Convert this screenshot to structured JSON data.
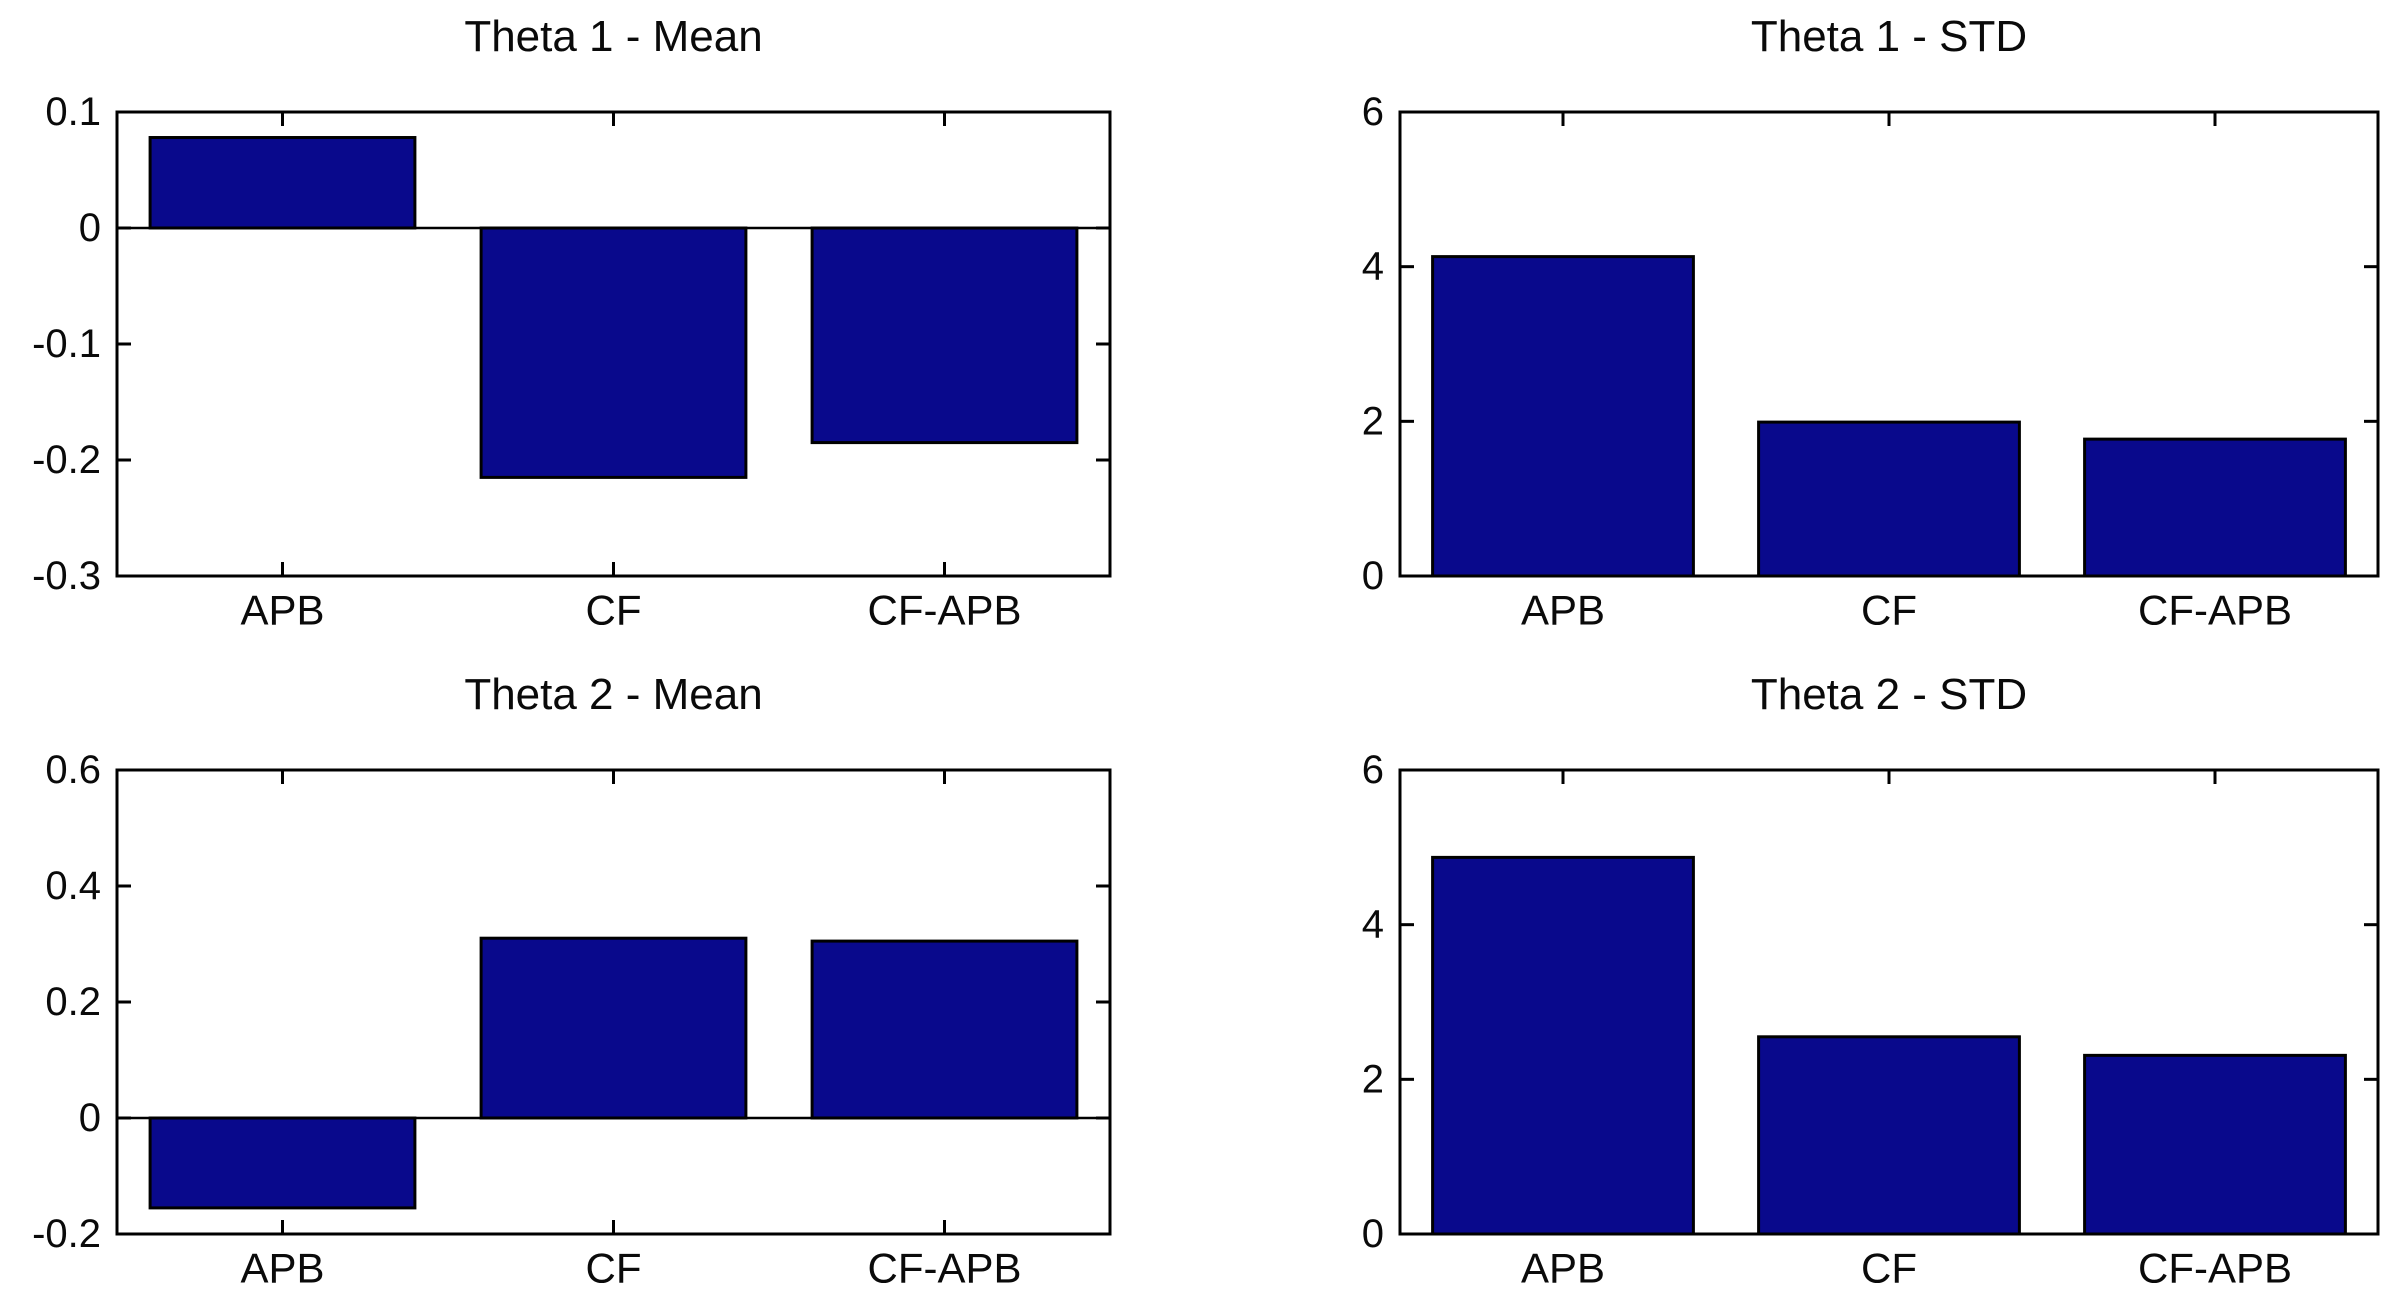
{
  "figure": {
    "background_color": "#ffffff",
    "bar_color": "#09098c",
    "bar_edge_color": "#000000",
    "axis_color": "#000000"
  },
  "chart_data": [
    {
      "type": "bar",
      "title": "Theta 1 - Mean",
      "categories": [
        "APB",
        "CF",
        "CF-APB"
      ],
      "values": [
        0.078,
        -0.215,
        -0.185
      ],
      "ylim": [
        -0.3,
        0.1
      ],
      "yticks": [
        0.1,
        0,
        -0.1,
        -0.2,
        -0.3
      ],
      "ytick_labels": [
        "0.1",
        "0",
        "-0.1",
        "-0.2",
        "-0.3"
      ],
      "xlabel": "",
      "ylabel": "",
      "grid": false,
      "legend": null,
      "position": "top-left"
    },
    {
      "type": "bar",
      "title": "Theta 1 - STD",
      "categories": [
        "APB",
        "CF",
        "CF-APB"
      ],
      "values": [
        4.13,
        1.99,
        1.77
      ],
      "ylim": [
        0,
        6
      ],
      "yticks": [
        6,
        4,
        2,
        0
      ],
      "ytick_labels": [
        "6",
        "4",
        "2",
        "0"
      ],
      "xlabel": "",
      "ylabel": "",
      "grid": false,
      "legend": null,
      "position": "top-right"
    },
    {
      "type": "bar",
      "title": "Theta 2 - Mean",
      "categories": [
        "APB",
        "CF",
        "CF-APB"
      ],
      "values": [
        -0.155,
        0.31,
        0.305
      ],
      "ylim": [
        -0.2,
        0.6
      ],
      "yticks": [
        0.6,
        0.4,
        0.2,
        0,
        -0.2
      ],
      "ytick_labels": [
        "0.6",
        "0.4",
        "0.2",
        "0",
        "-0.2"
      ],
      "xlabel": "",
      "ylabel": "",
      "grid": false,
      "legend": null,
      "position": "bottom-left"
    },
    {
      "type": "bar",
      "title": "Theta 2 - STD",
      "categories": [
        "APB",
        "CF",
        "CF-APB"
      ],
      "values": [
        4.87,
        2.55,
        2.31
      ],
      "ylim": [
        0,
        6
      ],
      "yticks": [
        6,
        4,
        2,
        0
      ],
      "ytick_labels": [
        "6",
        "4",
        "2",
        "0"
      ],
      "xlabel": "",
      "ylabel": "",
      "grid": false,
      "legend": null,
      "position": "bottom-right"
    }
  ]
}
